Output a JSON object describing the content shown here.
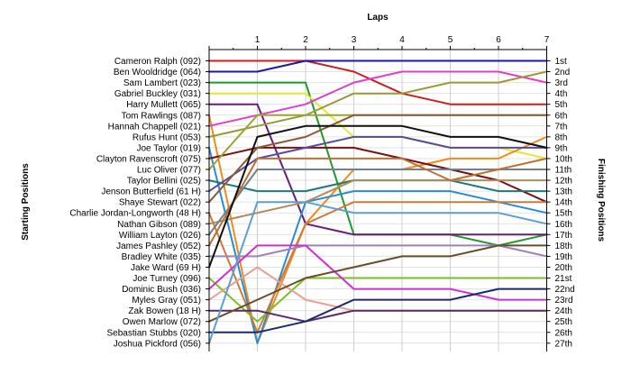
{
  "chart_data": {
    "type": "line",
    "title": "Laps",
    "ylabel_left": "Starting Positions",
    "ylabel_right": "Finishing Positions",
    "x": [
      0,
      1,
      2,
      3,
      4,
      5,
      6,
      7
    ],
    "x_tick_labels": [
      "1",
      "2",
      "3",
      "4",
      "5",
      "6",
      "7"
    ],
    "finishing_position_labels": [
      "1st",
      "2nd",
      "3rd",
      "4th",
      "5th",
      "6th",
      "7th",
      "8th",
      "9th",
      "10th",
      "11th",
      "12th",
      "13th",
      "14th",
      "15th",
      "16th",
      "17th",
      "18th",
      "19th",
      "20th",
      "21st",
      "22nd",
      "23rd",
      "24th",
      "25th",
      "26th",
      "27th"
    ],
    "grid": true,
    "series": [
      {
        "name": "Cameron Ralph (092)",
        "color": "#cc1f1f",
        "positions": [
          1,
          1,
          1,
          2,
          4,
          5,
          5,
          5
        ]
      },
      {
        "name": "Ben Wooldridge (064)",
        "color": "#1a1aa6",
        "positions": [
          2,
          2,
          1,
          1,
          1,
          1,
          1,
          1
        ]
      },
      {
        "name": "Sam Lambert (023)",
        "color": "#1f9a2a",
        "positions": [
          3,
          3,
          3,
          17,
          17,
          17,
          18,
          17
        ]
      },
      {
        "name": "Gabriel Buckley (031)",
        "color": "#e6e63c",
        "positions": [
          4,
          4,
          4,
          8,
          8,
          9,
          9,
          10
        ]
      },
      {
        "name": "Harry Mullett (065)",
        "color": "#6a1b7a",
        "positions": [
          5,
          5,
          16,
          17,
          17,
          17,
          17,
          17
        ]
      },
      {
        "name": "Tom Rawlings (087)",
        "color": "#f08a18",
        "positions": [
          6,
          27,
          16,
          11,
          11,
          10,
          10,
          8
        ]
      },
      {
        "name": "Hannah Chappell (021)",
        "color": "#e040c8",
        "positions": [
          7,
          6,
          5,
          3,
          2,
          2,
          2,
          3
        ]
      },
      {
        "name": "Rufus Hunt (053)",
        "color": "#9a9a34",
        "positions": [
          8,
          7,
          6,
          4,
          4,
          3,
          3,
          2
        ]
      },
      {
        "name": "Joe Taylor (019)",
        "color": "#2a8ad6",
        "positions": [
          9,
          27,
          14,
          13,
          13,
          13,
          14,
          15
        ]
      },
      {
        "name": "Clayton Ravenscroft (075)",
        "color": "#7a1010",
        "positions": [
          10,
          9,
          9,
          9,
          10,
          11,
          12,
          14
        ]
      },
      {
        "name": "Luc Oliver (077)",
        "color": "#9aa632",
        "positions": [
          11,
          6,
          6,
          6,
          6,
          6,
          6,
          6
        ]
      },
      {
        "name": "Taylor Bellini (025)",
        "color": "#1a7a7a",
        "positions": [
          12,
          13,
          13,
          12,
          12,
          12,
          13,
          13
        ]
      },
      {
        "name": "Jenson Butterfield (61 H)",
        "color": "#5a4a9a",
        "positions": [
          13,
          10,
          9,
          8,
          8,
          9,
          9,
          9
        ]
      },
      {
        "name": "Shaye Stewart (022)",
        "color": "#8a5a3a",
        "positions": [
          14,
          9,
          8,
          6,
          6,
          6,
          6,
          6
        ]
      },
      {
        "name": "Charlie Jordan-Longworth (48 H)",
        "color": "#d07a3a",
        "positions": [
          15,
          26,
          16,
          14,
          14,
          14,
          14,
          14
        ]
      },
      {
        "name": "Nathan Gibson (089)",
        "color": "#b08a5a",
        "positions": [
          16,
          15,
          14,
          12,
          12,
          12,
          12,
          12
        ]
      },
      {
        "name": "William Layton (026)",
        "color": "#708090",
        "positions": [
          17,
          11,
          11,
          11,
          11,
          11,
          11,
          11
        ]
      },
      {
        "name": "James Pashley (052)",
        "color": "#c07030",
        "positions": [
          18,
          10,
          10,
          10,
          10,
          12,
          11,
          10
        ]
      },
      {
        "name": "Bradley White (035)",
        "color": "#a080c0",
        "positions": [
          19,
          19,
          18,
          18,
          18,
          18,
          18,
          19
        ]
      },
      {
        "name": "Jake Ward (69 H)",
        "color": "#111111",
        "positions": [
          20,
          8,
          7,
          7,
          7,
          8,
          8,
          9
        ]
      },
      {
        "name": "Joe Turney (096)",
        "color": "#7ac020",
        "positions": [
          21,
          25,
          21,
          21,
          21,
          21,
          21,
          21
        ]
      },
      {
        "name": "Dominic Bush (036)",
        "color": "#d030d0",
        "positions": [
          22,
          18,
          18,
          22,
          22,
          22,
          23,
          23
        ]
      },
      {
        "name": "Myles Gray (051)",
        "color": "#e8a090",
        "positions": [
          23,
          20,
          23,
          24,
          24,
          24,
          24,
          24
        ]
      },
      {
        "name": "Zak Bowen (18 H)",
        "color": "#5a2a6a",
        "positions": [
          24,
          24,
          25,
          24,
          24,
          24,
          24,
          24
        ]
      },
      {
        "name": "Owen Marlow (072)",
        "color": "#6b4c2a",
        "positions": [
          25,
          23,
          21,
          20,
          19,
          19,
          18,
          18
        ]
      },
      {
        "name": "Sebastian Stubbs (020)",
        "color": "#1a2a6a",
        "positions": [
          26,
          26,
          25,
          23,
          23,
          23,
          22,
          22
        ]
      },
      {
        "name": "Joshua Pickford (056)",
        "color": "#5aa0d0",
        "positions": [
          27,
          14,
          14,
          15,
          15,
          15,
          15,
          16
        ]
      }
    ]
  }
}
